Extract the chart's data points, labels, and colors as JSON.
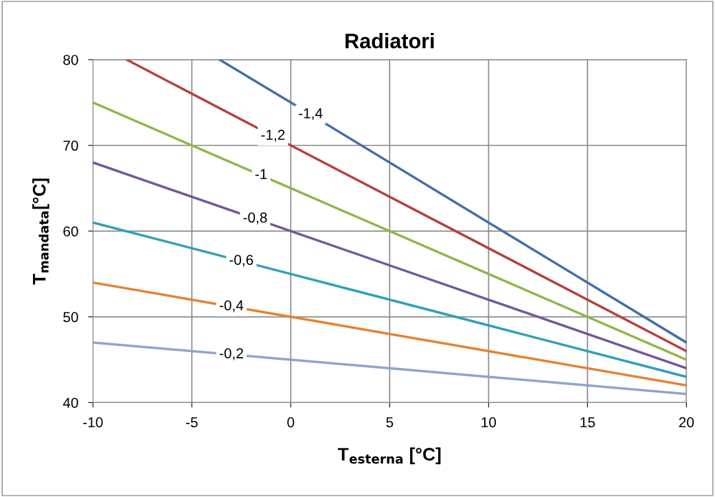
{
  "chart_data": {
    "type": "line",
    "title": "Radiatori",
    "xlabel": "T$_{esterna}$ [°C]",
    "ylabel": "T$_{mandata}$[°C]",
    "xlim": [
      -10,
      20
    ],
    "xticks": [
      -10,
      -5,
      0,
      5,
      10,
      15,
      20
    ],
    "ylim": [
      40,
      80
    ],
    "yticks": [
      40,
      50,
      60,
      70,
      80
    ],
    "grid": true,
    "legend": false,
    "series": [
      {
        "name": "-0,2",
        "color": "#8ea5cb",
        "x": [
          -10,
          0,
          10,
          20
        ],
        "values": [
          47,
          45,
          43,
          41
        ]
      },
      {
        "name": "-0,4",
        "color": "#e6812f",
        "x": [
          -10,
          0,
          10,
          20
        ],
        "values": [
          54,
          50,
          46,
          42
        ]
      },
      {
        "name": "-0,6",
        "color": "#31a0b8",
        "x": [
          -10,
          0,
          10,
          20
        ],
        "values": [
          61,
          55,
          49,
          43
        ]
      },
      {
        "name": "-0,8",
        "color": "#71589a",
        "x": [
          -10,
          0,
          10,
          20
        ],
        "values": [
          68,
          60,
          52,
          44
        ]
      },
      {
        "name": "-1",
        "color": "#8eb74a",
        "x": [
          -10,
          0,
          10,
          20
        ],
        "values": [
          75,
          65,
          55,
          45
        ]
      },
      {
        "name": "-1,2",
        "color": "#b5403d",
        "x": [
          -8.3,
          0,
          10,
          20
        ],
        "values": [
          80,
          70,
          58,
          46
        ]
      },
      {
        "name": "-1,4",
        "color": "#4270aa",
        "x": [
          -3.6,
          0,
          10,
          20
        ],
        "values": [
          80,
          75,
          61,
          47
        ]
      }
    ]
  }
}
